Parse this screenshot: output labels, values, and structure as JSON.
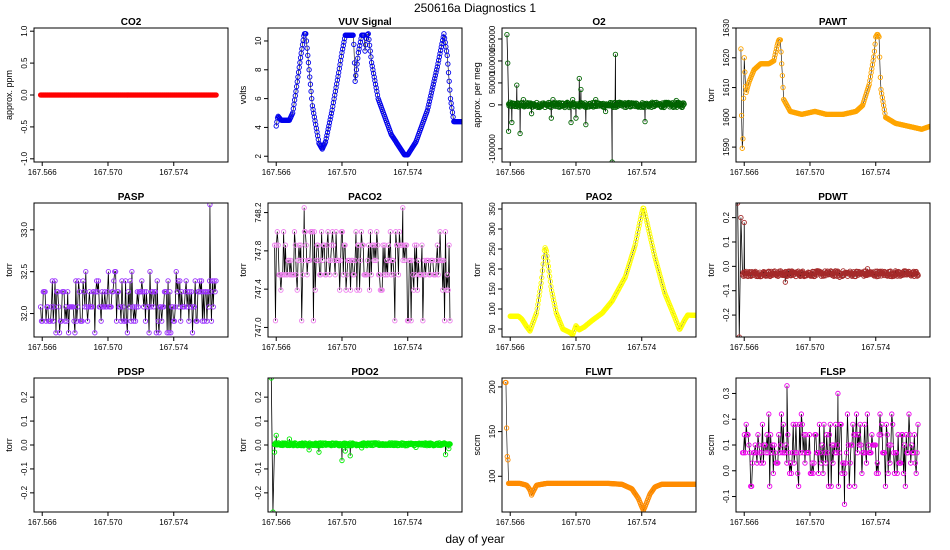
{
  "figure": {
    "title": "250616a   Diagnostics 1",
    "xlabel": "day of year"
  },
  "chart_data": [
    {
      "id": "co2",
      "type": "scatter",
      "title": "CO2",
      "ylabel": "approx. ppm",
      "xlim": [
        167.5655,
        167.5773
      ],
      "ylim": [
        -1.05,
        1.05
      ],
      "yticks": [
        -1.0,
        -0.5,
        0.0,
        0.5,
        1.0
      ],
      "yticklabels": [
        "-1.0",
        "-0.5",
        "0.0",
        "0.5",
        "1.0"
      ],
      "xticks": [
        167.566,
        167.57,
        167.574
      ],
      "xticklabels": [
        "167.566",
        "167.570",
        "167.574"
      ],
      "color": "#ff0000",
      "points_lines": false,
      "marker_density": 2.2,
      "kind": "flat",
      "value": 0
    },
    {
      "id": "vuv",
      "type": "line",
      "title": "VUV Signal",
      "ylabel": "volts",
      "xlim": [
        167.5655,
        167.5773
      ],
      "ylim": [
        1.6,
        10.9
      ],
      "yticks": [
        2,
        4,
        6,
        8,
        10
      ],
      "yticklabels": [
        "2",
        "4",
        "6",
        "8",
        "10"
      ],
      "xticks": [
        167.566,
        167.57,
        167.574
      ],
      "xticklabels": [
        "167.566",
        "167.570",
        "167.574"
      ],
      "color": "#0000ee",
      "points_lines": false,
      "marker_density": 1.4,
      "kind": "points",
      "points": [
        [
          167.566,
          4.1
        ],
        [
          167.5661,
          4.8
        ],
        [
          167.5663,
          4.5
        ],
        [
          167.5668,
          4.5
        ],
        [
          167.567,
          5.0
        ],
        [
          167.5672,
          6.5
        ],
        [
          167.5675,
          9.0
        ],
        [
          167.5677,
          10.5
        ],
        [
          167.5678,
          10.5
        ],
        [
          167.5682,
          5.5
        ],
        [
          167.5686,
          2.9
        ],
        [
          167.5688,
          2.5
        ],
        [
          167.569,
          3.0
        ],
        [
          167.5694,
          5.2
        ],
        [
          167.5698,
          7.8
        ],
        [
          167.57,
          9.2
        ],
        [
          167.5702,
          10.4
        ],
        [
          167.5707,
          10.4
        ],
        [
          167.5708,
          7.2
        ],
        [
          167.571,
          9.2
        ],
        [
          167.5712,
          10.4
        ],
        [
          167.5714,
          10.4
        ],
        [
          167.5714,
          9.3
        ],
        [
          167.5715,
          10.4
        ],
        [
          167.5716,
          10.5
        ],
        [
          167.5718,
          8.5
        ],
        [
          167.5722,
          6.0
        ],
        [
          167.573,
          3.5
        ],
        [
          167.5738,
          2.1
        ],
        [
          167.574,
          2.1
        ],
        [
          167.5745,
          3.0
        ],
        [
          167.5752,
          5.2
        ],
        [
          167.5758,
          8.2
        ],
        [
          167.5762,
          10.5
        ],
        [
          167.5764,
          9.0
        ],
        [
          167.5766,
          6.0
        ],
        [
          167.5768,
          4.4
        ],
        [
          167.5773,
          4.4
        ]
      ]
    },
    {
      "id": "o2",
      "type": "line",
      "title": "O2",
      "ylabel": "approx. per meg",
      "xlim": [
        167.5655,
        167.5773
      ],
      "ylim": [
        -130000,
        175000
      ],
      "yticks": [
        -100000,
        0,
        50000,
        100000,
        150000
      ],
      "yticklabels": [
        "-100000",
        "0",
        "50000",
        "100000",
        "150000"
      ],
      "xticks": [
        167.566,
        167.57,
        167.574
      ],
      "xticklabels": [
        "167.566",
        "167.570",
        "167.574"
      ],
      "color": "#006400",
      "points_lines": true,
      "marker_density": 3.0,
      "kind": "spiky",
      "base": 0,
      "noise": 6000,
      "spikes": [
        [
          167.5658,
          160000
        ],
        [
          167.56585,
          95000
        ],
        [
          167.5659,
          -60000
        ],
        [
          167.5661,
          -40000
        ],
        [
          167.5664,
          45000
        ],
        [
          167.5666,
          -65000
        ],
        [
          167.5668,
          12000
        ],
        [
          167.5673,
          -20000
        ],
        [
          167.5685,
          -30000
        ],
        [
          167.5686,
          12000
        ],
        [
          167.5697,
          -40000
        ],
        [
          167.5698,
          12000
        ],
        [
          167.57,
          -30000
        ],
        [
          167.5702,
          60000
        ],
        [
          167.5703,
          35000
        ],
        [
          167.5706,
          -45000
        ],
        [
          167.5712,
          12000
        ],
        [
          167.5718,
          -15000
        ],
        [
          167.5722,
          -130000
        ],
        [
          167.5724,
          115000
        ],
        [
          167.5742,
          -38000
        ],
        [
          167.5761,
          10000
        ]
      ]
    },
    {
      "id": "pawt",
      "type": "line",
      "title": "PAWT",
      "ylabel": "torr",
      "xlim": [
        167.5655,
        167.5773
      ],
      "ylim": [
        1585,
        1630
      ],
      "yticks": [
        1590,
        1600,
        1610,
        1620,
        1630
      ],
      "yticklabels": [
        "1590",
        "1600",
        "1610",
        "1620",
        "1630"
      ],
      "xticks": [
        167.566,
        167.57,
        167.574
      ],
      "xticklabels": [
        "167.566",
        "167.570",
        "167.574"
      ],
      "color": "#ffa500",
      "points_lines": false,
      "marker_density": 1.6,
      "kind": "points",
      "points": [
        [
          167.5658,
          1623
        ],
        [
          167.56585,
          1595
        ],
        [
          167.5659,
          1586
        ],
        [
          167.566,
          1620
        ],
        [
          167.5661,
          1608
        ],
        [
          167.5663,
          1612
        ],
        [
          167.5666,
          1616
        ],
        [
          167.567,
          1618
        ],
        [
          167.5675,
          1618
        ],
        [
          167.5678,
          1619
        ],
        [
          167.568,
          1624
        ],
        [
          167.5681,
          1626
        ],
        [
          167.5682,
          1626
        ],
        [
          167.5684,
          1606
        ],
        [
          167.5688,
          1602
        ],
        [
          167.5695,
          1601
        ],
        [
          167.5703,
          1602
        ],
        [
          167.571,
          1601
        ],
        [
          167.572,
          1601
        ],
        [
          167.5728,
          1602
        ],
        [
          167.5732,
          1604
        ],
        [
          167.5736,
          1611
        ],
        [
          167.5739,
          1621
        ],
        [
          167.574,
          1627
        ],
        [
          167.5741,
          1628
        ],
        [
          167.5742,
          1627
        ],
        [
          167.5743,
          1610
        ],
        [
          167.5746,
          1600
        ],
        [
          167.5752,
          1598
        ],
        [
          167.576,
          1597
        ],
        [
          167.5768,
          1596
        ],
        [
          167.5773,
          1597
        ]
      ]
    },
    {
      "id": "pasp",
      "type": "line",
      "title": "PASP",
      "ylabel": "torr",
      "xlim": [
        167.5655,
        167.5773
      ],
      "ylim": [
        31.72,
        33.32
      ],
      "yticks": [
        32.0,
        32.5,
        33.0
      ],
      "yticklabels": [
        "32.0",
        "32.5",
        "33.0"
      ],
      "xticks": [
        167.566,
        167.57,
        167.574
      ],
      "xticklabels": [
        "167.566",
        "167.570",
        "167.574"
      ],
      "color": "#9b30ff",
      "points_lines": true,
      "marker_density": 5.0,
      "kind": "quant",
      "levels": [
        31.77,
        31.91,
        32.08,
        32.26,
        32.39,
        32.5
      ],
      "weights": [
        1,
        3,
        5,
        5,
        2,
        1
      ],
      "extra": [
        [
          167.5762,
          33.3
        ]
      ]
    },
    {
      "id": "paco2",
      "type": "line",
      "title": "PACO2",
      "ylabel": "torr",
      "xlim": [
        167.5655,
        167.5773
      ],
      "ylim": [
        746.9,
        748.3
      ],
      "yticks": [
        747.0,
        747.4,
        747.8,
        748.2
      ],
      "yticklabels": [
        "747.0",
        "747.4",
        "747.8",
        "748.2"
      ],
      "xticks": [
        167.566,
        167.57,
        167.574
      ],
      "xticklabels": [
        "167.566",
        "167.570",
        "167.574"
      ],
      "color": "#ee82ee",
      "points_lines": true,
      "marker_density": 7.0,
      "kind": "quant",
      "levels": [
        747.07,
        747.39,
        747.55,
        747.7,
        747.86,
        748.0
      ],
      "weights": [
        1,
        2,
        5,
        5,
        4,
        2
      ],
      "extra": [
        [
          167.5677,
          748.25
        ],
        [
          167.5737,
          748.25
        ]
      ]
    },
    {
      "id": "pao2",
      "type": "line",
      "title": "PAO2",
      "ylabel": "torr",
      "xlim": [
        167.5655,
        167.5773
      ],
      "ylim": [
        30,
        365
      ],
      "yticks": [
        50,
        100,
        150,
        200,
        250,
        300,
        350
      ],
      "yticklabels": [
        "50",
        "100",
        "150",
        "200",
        "250",
        "300",
        "350"
      ],
      "xticks": [
        167.566,
        167.57,
        167.574
      ],
      "xticklabels": [
        "167.566",
        "167.570",
        "167.574"
      ],
      "color": "#ffff00",
      "points_lines": false,
      "marker_density": 1.6,
      "kind": "points",
      "points": [
        [
          167.566,
          82
        ],
        [
          167.5665,
          82
        ],
        [
          167.5667,
          75
        ],
        [
          167.567,
          56
        ],
        [
          167.5672,
          45
        ],
        [
          167.5676,
          90
        ],
        [
          167.5679,
          170
        ],
        [
          167.5681,
          255
        ],
        [
          167.5682,
          245
        ],
        [
          167.5685,
          150
        ],
        [
          167.5688,
          90
        ],
        [
          167.5692,
          50
        ],
        [
          167.5696,
          42
        ],
        [
          167.5698,
          36
        ],
        [
          167.57,
          58
        ],
        [
          167.5702,
          48
        ],
        [
          167.5705,
          55
        ],
        [
          167.571,
          72
        ],
        [
          167.5716,
          90
        ],
        [
          167.5722,
          120
        ],
        [
          167.573,
          180
        ],
        [
          167.5736,
          260
        ],
        [
          167.574,
          340
        ],
        [
          167.5741,
          355
        ],
        [
          167.5743,
          320
        ],
        [
          167.5748,
          230
        ],
        [
          167.5754,
          140
        ],
        [
          167.576,
          80
        ],
        [
          167.5763,
          48
        ],
        [
          167.5766,
          72
        ],
        [
          167.5768,
          85
        ],
        [
          167.5773,
          84
        ]
      ]
    },
    {
      "id": "pdwt",
      "type": "line",
      "title": "PDWT",
      "ylabel": "torr",
      "xlim": [
        167.5655,
        167.5773
      ],
      "ylim": [
        -0.29,
        0.26
      ],
      "yticks": [
        -0.2,
        -0.1,
        0.0,
        0.1,
        0.2
      ],
      "yticklabels": [
        "-0.2",
        "-0.1",
        "0.0",
        "0.1",
        "0.2"
      ],
      "xticks": [
        167.566,
        167.57,
        167.574
      ],
      "xticklabels": [
        "167.566",
        "167.570",
        "167.574"
      ],
      "color": "#a52a2a",
      "points_lines": true,
      "marker_density": 2.6,
      "kind": "noisy",
      "base": -0.03,
      "noise": 0.012,
      "spikes": [
        [
          167.5656,
          0.26
        ],
        [
          167.5657,
          -0.29
        ],
        [
          167.5658,
          0.2
        ],
        [
          167.566,
          0.18
        ],
        [
          167.5685,
          -0.065
        ],
        [
          167.5718,
          -0.045
        ],
        [
          167.5735,
          -0.01
        ]
      ]
    },
    {
      "id": "pdsp",
      "type": "line",
      "title": "PDSP",
      "ylabel": "torr",
      "xlim": [
        167.5655,
        167.5773
      ],
      "ylim": [
        -0.28,
        0.28
      ],
      "yticks": [
        -0.2,
        -0.1,
        0.0,
        0.1,
        0.2
      ],
      "yticklabels": [
        "-0.2",
        "-0.1",
        "0.0",
        "0.1",
        "0.2"
      ],
      "xticks": [
        167.566,
        167.57,
        167.574
      ],
      "xticklabels": [
        "167.566",
        "167.570",
        "167.574"
      ],
      "color": "#ffffff",
      "points_lines": false,
      "marker_density": 0,
      "kind": "empty"
    },
    {
      "id": "pdo2",
      "type": "line",
      "title": "PDO2",
      "ylabel": "torr",
      "xlim": [
        167.5655,
        167.5773
      ],
      "ylim": [
        -0.28,
        0.28
      ],
      "yticks": [
        -0.2,
        -0.1,
        0.0,
        0.1,
        0.2
      ],
      "yticklabels": [
        "-0.2",
        "-0.1",
        "0.0",
        "0.1",
        "0.2"
      ],
      "xticks": [
        167.566,
        167.57,
        167.574
      ],
      "xticklabels": [
        "167.566",
        "167.570",
        "167.574"
      ],
      "color": "#00ee00",
      "points_lines": true,
      "marker_density": 2.6,
      "kind": "noisy",
      "base": 0.003,
      "noise": 0.006,
      "spikes": [
        [
          167.5657,
          0.28
        ],
        [
          167.5658,
          -0.28
        ],
        [
          167.5659,
          -0.03
        ],
        [
          167.566,
          0.04
        ],
        [
          167.5668,
          0.025
        ],
        [
          167.568,
          -0.02
        ],
        [
          167.5686,
          -0.03
        ],
        [
          167.57,
          -0.065
        ],
        [
          167.5702,
          -0.025
        ],
        [
          167.5705,
          -0.045
        ],
        [
          167.5712,
          -0.012
        ],
        [
          167.5745,
          -0.01
        ],
        [
          167.5763,
          -0.04
        ],
        [
          167.5765,
          -0.015
        ]
      ]
    },
    {
      "id": "flwt",
      "type": "line",
      "title": "FLWT",
      "ylabel": "sccm",
      "xlim": [
        167.5655,
        167.5773
      ],
      "ylim": [
        60,
        210
      ],
      "yticks": [
        100,
        150,
        200
      ],
      "yticklabels": [
        "100",
        "150",
        "200"
      ],
      "xticks": [
        167.566,
        167.57,
        167.574
      ],
      "xticklabels": [
        "167.566",
        "167.570",
        "167.574"
      ],
      "color": "#ff8c00",
      "points_lines": false,
      "marker_density": 1.6,
      "kind": "points",
      "points": [
        [
          167.5657,
          205
        ],
        [
          167.56575,
          205
        ],
        [
          167.5658,
          120
        ],
        [
          167.56585,
          125
        ],
        [
          167.5659,
          92
        ],
        [
          167.5666,
          92
        ],
        [
          167.567,
          90
        ],
        [
          167.5672,
          85
        ],
        [
          167.5673,
          79
        ],
        [
          167.5674,
          83
        ],
        [
          167.5676,
          90
        ],
        [
          167.5682,
          92
        ],
        [
          167.572,
          92
        ],
        [
          167.5728,
          91
        ],
        [
          167.5734,
          86
        ],
        [
          167.5738,
          75
        ],
        [
          167.574,
          66
        ],
        [
          167.5741,
          62
        ],
        [
          167.5742,
          66
        ],
        [
          167.5745,
          80
        ],
        [
          167.5748,
          88
        ],
        [
          167.5752,
          91
        ],
        [
          167.5773,
          91
        ]
      ]
    },
    {
      "id": "flsp",
      "type": "line",
      "title": "FLSP",
      "ylabel": "sccm",
      "xlim": [
        167.5655,
        167.5773
      ],
      "ylim": [
        -0.16,
        0.36
      ],
      "yticks": [
        -0.1,
        0.0,
        0.1,
        0.2,
        0.3
      ],
      "yticklabels": [
        "-0.1",
        "0.0",
        "0.1",
        "0.2",
        "0.3"
      ],
      "xticks": [
        167.566,
        167.57,
        167.574
      ],
      "xticklabels": [
        "167.566",
        "167.570",
        "167.574"
      ],
      "color": "#ee00ee",
      "points_lines": true,
      "marker_density": 4.0,
      "kind": "quant",
      "levels": [
        -0.06,
        -0.01,
        0.03,
        0.07,
        0.1,
        0.14,
        0.18,
        0.22
      ],
      "weights": [
        1,
        2,
        3,
        5,
        5,
        3,
        2,
        1
      ],
      "extra": [
        [
          167.5686,
          0.33
        ],
        [
          167.5717,
          0.3
        ],
        [
          167.5721,
          -0.13
        ]
      ]
    }
  ]
}
